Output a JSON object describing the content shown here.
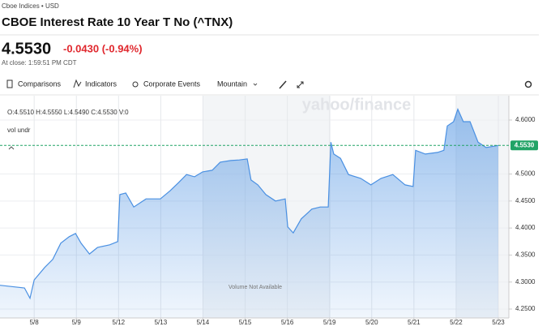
{
  "header": {
    "source": "Cboe Indices • USD",
    "title": "CBOE Interest Rate 10 Year T No (^TNX)",
    "price": "4.5530",
    "change": "-0.0430 (-0.94%)",
    "close_time": "At close: 1:59:51 PM CDT"
  },
  "toolbar": {
    "comparisons": "Comparisons",
    "indicators": "Indicators",
    "corporate_events": "Corporate Events",
    "chart_style": "Mountain"
  },
  "chart_data": {
    "type": "area",
    "color": "#4a90e2",
    "watermark": "yahoo/finance",
    "ohlc": "O:4.5510  H:4.5550  L:4.5490  C:4.5530  V:0",
    "volume_label": "vol undr",
    "annotation": "Volume Not Available",
    "x": [
      -0.81,
      -0.23,
      -0.1,
      0,
      0.25,
      0.44,
      0.63,
      0.83,
      0.98,
      1.11,
      1.31,
      1.5,
      1.79,
      1.98,
      2.03,
      2.17,
      2.36,
      2.65,
      2.99,
      3.22,
      3.42,
      3.61,
      3.8,
      3.99,
      4.22,
      4.41,
      4.66,
      4.86,
      5.05,
      5.14,
      5.3,
      5.49,
      5.72,
      5.95,
      6.01,
      6.14,
      6.33,
      6.58,
      6.78,
      6.97,
      7.03,
      7.1,
      7.26,
      7.45,
      7.74,
      7.98,
      8.22,
      8.5,
      8.79,
      8.98,
      9.04,
      9.27,
      9.56,
      9.71,
      9.79,
      9.94,
      10.04,
      10.17,
      10.33,
      10.52,
      10.71,
      11.0
    ],
    "values": [
      4.294,
      4.289,
      4.27,
      4.304,
      4.327,
      4.342,
      4.372,
      4.384,
      4.39,
      4.372,
      4.352,
      4.364,
      4.369,
      4.375,
      4.462,
      4.465,
      4.439,
      4.454,
      4.454,
      4.469,
      4.484,
      4.499,
      4.495,
      4.504,
      4.507,
      4.522,
      4.525,
      4.526,
      4.528,
      4.489,
      4.48,
      4.462,
      4.45,
      4.454,
      4.402,
      4.391,
      4.417,
      4.435,
      4.439,
      4.439,
      4.559,
      4.537,
      4.529,
      4.499,
      4.492,
      4.48,
      4.492,
      4.499,
      4.48,
      4.477,
      4.544,
      4.537,
      4.54,
      4.544,
      4.589,
      4.597,
      4.62,
      4.597,
      4.597,
      4.559,
      4.549,
      4.553
    ],
    "xlim": [
      -0.81,
      11.25
    ],
    "xticks": [
      {
        "value": 0,
        "label": "5/8"
      },
      {
        "value": 1,
        "label": "5/9"
      },
      {
        "value": 2,
        "label": "5/12"
      },
      {
        "value": 3,
        "label": "5/13"
      },
      {
        "value": 4,
        "label": "5/14"
      },
      {
        "value": 5,
        "label": "5/15"
      },
      {
        "value": 6,
        "label": "5/16"
      },
      {
        "value": 7,
        "label": "5/19"
      },
      {
        "value": 8,
        "label": "5/20"
      },
      {
        "value": 9,
        "label": "5/21"
      },
      {
        "value": 10,
        "label": "5/22"
      },
      {
        "value": 11,
        "label": "5/23"
      }
    ],
    "ylim": [
      4.2335,
      4.645
    ],
    "yticks": [
      {
        "value": 4.25,
        "label": "4.2500"
      },
      {
        "value": 4.3,
        "label": "4.3000"
      },
      {
        "value": 4.35,
        "label": "4.3500"
      },
      {
        "value": 4.4,
        "label": "4.4000"
      },
      {
        "value": 4.45,
        "label": "4.4500"
      },
      {
        "value": 4.5,
        "label": "4.5000"
      },
      {
        "value": 4.6,
        "label": "4.6000"
      }
    ],
    "reference_line": {
      "value": 4.553,
      "label": "4.5530",
      "color": "#21a366"
    },
    "grid": true
  }
}
